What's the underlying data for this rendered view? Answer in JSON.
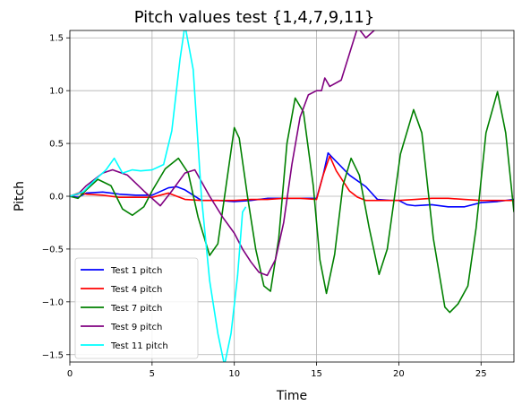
{
  "chart_data": {
    "type": "line",
    "title": "Pitch values test {1,4,7,9,11}",
    "xlabel": "Time",
    "ylabel": "Pitch",
    "xlim": [
      0,
      27
    ],
    "ylim": [
      -1.57,
      1.57
    ],
    "grid": true,
    "legend_position": "lower-left",
    "x_ticks": [
      0,
      5,
      10,
      15,
      20,
      25
    ],
    "x_tick_labels": [
      "0",
      "5",
      "10",
      "15",
      "20",
      "25"
    ],
    "y_ticks": [
      -1.5,
      -1.0,
      -0.5,
      0.0,
      0.5,
      1.0,
      1.5
    ],
    "y_tick_labels": [
      "−1.5",
      "−1.0",
      "−0.5",
      "0.0",
      "0.5",
      "1.0",
      "1.5"
    ],
    "series": [
      {
        "name": "Test 1 pitch",
        "color": "#0000ff",
        "points": [
          [
            0,
            0
          ],
          [
            0.5,
            -0.01
          ],
          [
            1,
            0.03
          ],
          [
            2,
            0.04
          ],
          [
            3,
            0.02
          ],
          [
            4,
            0.01
          ],
          [
            5,
            0.01
          ],
          [
            6,
            0.08
          ],
          [
            6.5,
            0.09
          ],
          [
            7,
            0.06
          ],
          [
            8,
            -0.04
          ],
          [
            9,
            -0.04
          ],
          [
            10,
            -0.05
          ],
          [
            11,
            -0.04
          ],
          [
            12,
            -0.02
          ],
          [
            13,
            -0.02
          ],
          [
            14,
            -0.02
          ],
          [
            15,
            -0.02
          ],
          [
            15.4,
            0.2
          ],
          [
            15.7,
            0.41
          ],
          [
            16,
            0.36
          ],
          [
            17,
            0.2
          ],
          [
            18,
            0.09
          ],
          [
            18.7,
            -0.03
          ],
          [
            19.5,
            -0.04
          ],
          [
            20,
            -0.04
          ],
          [
            20.5,
            -0.08
          ],
          [
            21,
            -0.09
          ],
          [
            22,
            -0.08
          ],
          [
            23,
            -0.1
          ],
          [
            24,
            -0.1
          ],
          [
            25,
            -0.06
          ],
          [
            26,
            -0.05
          ],
          [
            27,
            -0.03
          ]
        ]
      },
      {
        "name": "Test 4 pitch",
        "color": "#ff0000",
        "points": [
          [
            0,
            0
          ],
          [
            0.5,
            0.03
          ],
          [
            1,
            0.02
          ],
          [
            2,
            0.01
          ],
          [
            3,
            -0.01
          ],
          [
            4,
            -0.01
          ],
          [
            5,
            -0.01
          ],
          [
            6,
            0.03
          ],
          [
            7,
            -0.03
          ],
          [
            8,
            -0.04
          ],
          [
            9,
            -0.04
          ],
          [
            10,
            -0.04
          ],
          [
            11,
            -0.03
          ],
          [
            12,
            -0.03
          ],
          [
            13,
            -0.02
          ],
          [
            14,
            -0.02
          ],
          [
            15,
            -0.03
          ],
          [
            15.4,
            0.2
          ],
          [
            15.8,
            0.38
          ],
          [
            16.2,
            0.24
          ],
          [
            17,
            0.05
          ],
          [
            17.5,
            -0.01
          ],
          [
            18,
            -0.04
          ],
          [
            19,
            -0.04
          ],
          [
            20,
            -0.04
          ],
          [
            21,
            -0.03
          ],
          [
            22,
            -0.02
          ],
          [
            23,
            -0.02
          ],
          [
            24,
            -0.03
          ],
          [
            25,
            -0.04
          ],
          [
            26,
            -0.04
          ],
          [
            27,
            -0.04
          ]
        ]
      },
      {
        "name": "Test 7 pitch",
        "color": "#008000",
        "points": [
          [
            0,
            0
          ],
          [
            0.5,
            -0.02
          ],
          [
            1,
            0.06
          ],
          [
            1.7,
            0.16
          ],
          [
            2.5,
            0.1
          ],
          [
            3.2,
            -0.12
          ],
          [
            3.8,
            -0.18
          ],
          [
            4.5,
            -0.1
          ],
          [
            5,
            0.05
          ],
          [
            5.8,
            0.26
          ],
          [
            6.6,
            0.36
          ],
          [
            7.2,
            0.22
          ],
          [
            7.8,
            -0.2
          ],
          [
            8.5,
            -0.56
          ],
          [
            9,
            -0.45
          ],
          [
            9.5,
            0.1
          ],
          [
            10,
            0.65
          ],
          [
            10.3,
            0.55
          ],
          [
            10.8,
            0.0
          ],
          [
            11.3,
            -0.5
          ],
          [
            11.8,
            -0.85
          ],
          [
            12.2,
            -0.9
          ],
          [
            12.7,
            -0.4
          ],
          [
            13.2,
            0.5
          ],
          [
            13.7,
            0.93
          ],
          [
            14.2,
            0.8
          ],
          [
            14.8,
            0.1
          ],
          [
            15.2,
            -0.6
          ],
          [
            15.6,
            -0.92
          ],
          [
            16.1,
            -0.55
          ],
          [
            16.6,
            0.1
          ],
          [
            17.1,
            0.36
          ],
          [
            17.6,
            0.2
          ],
          [
            18.2,
            -0.3
          ],
          [
            18.8,
            -0.74
          ],
          [
            19.3,
            -0.5
          ],
          [
            20.1,
            0.4
          ],
          [
            20.9,
            0.82
          ],
          [
            21.4,
            0.6
          ],
          [
            22.1,
            -0.4
          ],
          [
            22.8,
            -1.05
          ],
          [
            23.1,
            -1.1
          ],
          [
            23.6,
            -1.02
          ],
          [
            24.2,
            -0.85
          ],
          [
            24.7,
            -0.3
          ],
          [
            25.3,
            0.6
          ],
          [
            26,
            0.99
          ],
          [
            26.5,
            0.6
          ],
          [
            27,
            -0.15
          ]
        ]
      },
      {
        "name": "Test 9 pitch",
        "color": "#800080",
        "points": [
          [
            0,
            0
          ],
          [
            0.5,
            0.02
          ],
          [
            1,
            0.1
          ],
          [
            2,
            0.22
          ],
          [
            2.6,
            0.25
          ],
          [
            3.5,
            0.2
          ],
          [
            4.5,
            0.05
          ],
          [
            5.5,
            -0.09
          ],
          [
            6.2,
            0.05
          ],
          [
            7,
            0.22
          ],
          [
            7.6,
            0.25
          ],
          [
            8.5,
            0.0
          ],
          [
            9.3,
            -0.2
          ],
          [
            10,
            -0.35
          ],
          [
            10.5,
            -0.5
          ],
          [
            11,
            -0.62
          ],
          [
            11.5,
            -0.72
          ],
          [
            12,
            -0.75
          ],
          [
            12.5,
            -0.6
          ],
          [
            13,
            -0.25
          ],
          [
            13.5,
            0.3
          ],
          [
            14,
            0.75
          ],
          [
            14.5,
            0.96
          ],
          [
            15,
            1.0
          ],
          [
            15.3,
            1.0
          ],
          [
            15.5,
            1.12
          ],
          [
            15.8,
            1.04
          ],
          [
            16.5,
            1.1
          ],
          [
            17,
            1.35
          ],
          [
            17.5,
            1.6
          ],
          [
            18,
            1.5
          ],
          [
            18.5,
            1.57
          ],
          [
            19,
            1.62
          ],
          [
            20,
            1.62
          ]
        ]
      },
      {
        "name": "Test 11 pitch",
        "color": "#00ffff",
        "points": [
          [
            0,
            0
          ],
          [
            0.8,
            0.04
          ],
          [
            1.5,
            0.15
          ],
          [
            2.2,
            0.25
          ],
          [
            2.7,
            0.36
          ],
          [
            3.2,
            0.22
          ],
          [
            3.8,
            0.25
          ],
          [
            4.3,
            0.24
          ],
          [
            5,
            0.25
          ],
          [
            5.7,
            0.3
          ],
          [
            6.2,
            0.62
          ],
          [
            6.7,
            1.3
          ],
          [
            7,
            1.62
          ],
          [
            7.5,
            1.2
          ],
          [
            8,
            0.0
          ],
          [
            8.5,
            -0.8
          ],
          [
            9,
            -1.3
          ],
          [
            9.4,
            -1.6
          ],
          [
            9.8,
            -1.3
          ],
          [
            10.2,
            -0.75
          ],
          [
            10.5,
            -0.15
          ],
          [
            10.7,
            -0.1
          ]
        ]
      }
    ]
  }
}
